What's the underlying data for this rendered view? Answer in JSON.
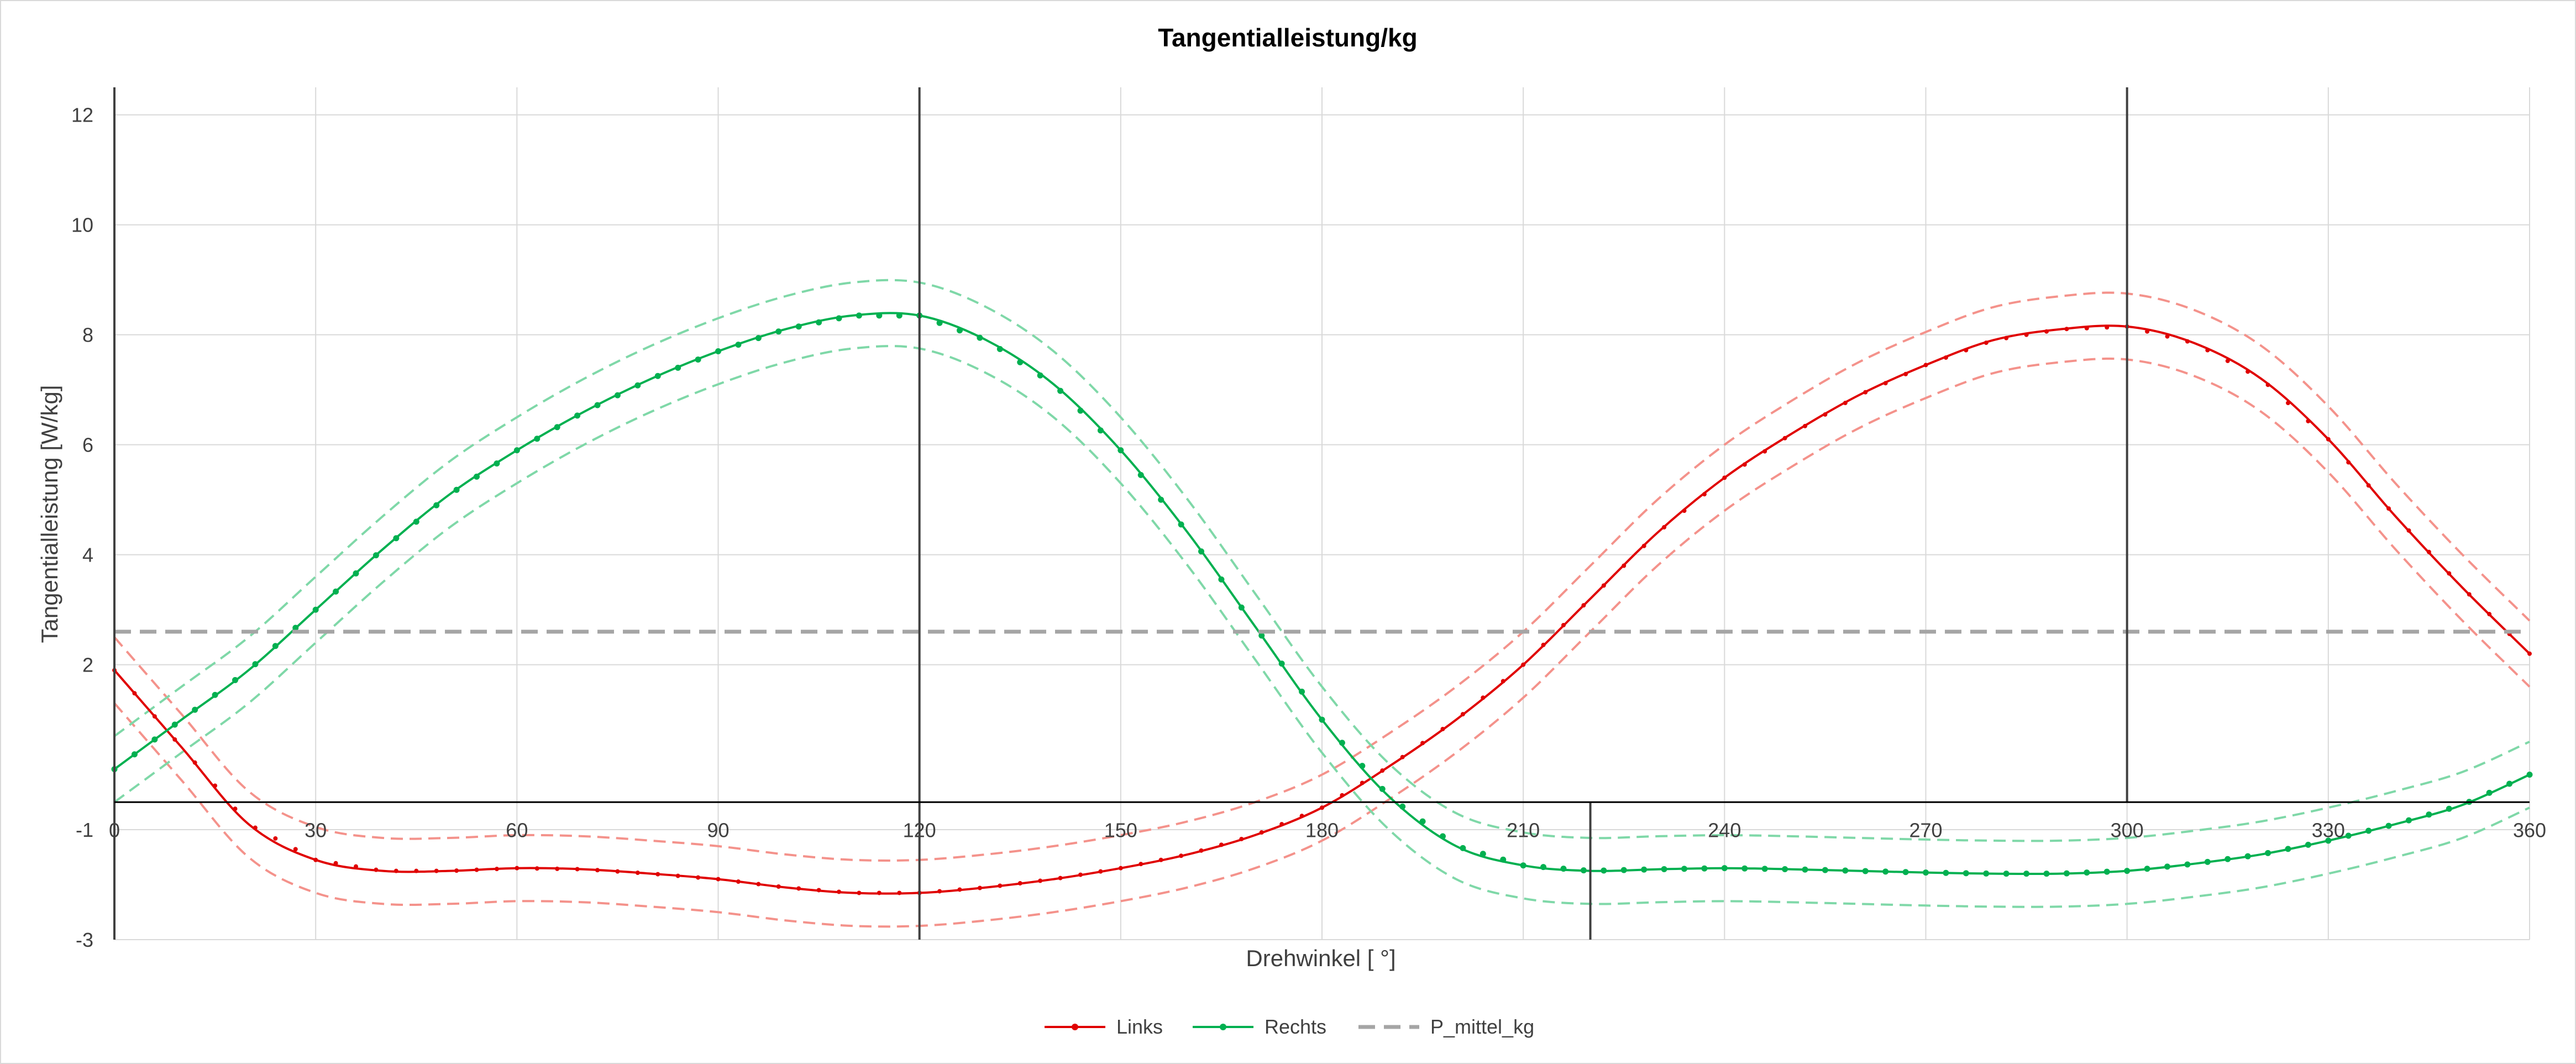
{
  "chart_data": {
    "type": "line",
    "title": "Tangentialleistung/kg",
    "xlabel": "Drehwinkel [ °]",
    "ylabel": "Tangentialleistung [W/kg]",
    "xlim": [
      0,
      360
    ],
    "ylim": [
      -3,
      12.5
    ],
    "x_ticks": [
      0,
      30,
      60,
      90,
      120,
      150,
      180,
      210,
      240,
      270,
      300,
      330,
      360
    ],
    "y_ticks": [
      -3,
      -1,
      2,
      4,
      6,
      8,
      10,
      12
    ],
    "grid": true,
    "legend_position": "bottom",
    "x_axis_crossing_y": -0.5,
    "vertical_markers": [
      {
        "x": 0,
        "y_from": -3,
        "y_to": 12.5
      },
      {
        "x": 120,
        "y_from": -3,
        "y_to": 12.5
      },
      {
        "x": 220,
        "y_from": -3,
        "y_to": -0.5
      },
      {
        "x": 300,
        "y_from": -0.5,
        "y_to": 12.5
      }
    ],
    "series": [
      {
        "name": "Links",
        "color": "#e00000",
        "band_color": "#f4928b",
        "band_width": 0.6,
        "x": [
          0,
          10,
          20,
          30,
          40,
          50,
          60,
          70,
          80,
          90,
          100,
          110,
          120,
          130,
          140,
          150,
          160,
          170,
          180,
          190,
          200,
          210,
          220,
          230,
          240,
          250,
          260,
          270,
          280,
          290,
          300,
          310,
          320,
          330,
          340,
          350,
          360
        ],
        "values": [
          1.9,
          0.5,
          -0.9,
          -1.55,
          -1.75,
          -1.75,
          -1.7,
          -1.72,
          -1.8,
          -1.9,
          -2.05,
          -2.15,
          -2.15,
          -2.05,
          -1.9,
          -1.7,
          -1.45,
          -1.1,
          -0.6,
          0.15,
          1.0,
          2.0,
          3.2,
          4.4,
          5.4,
          6.2,
          6.9,
          7.45,
          7.9,
          8.1,
          8.15,
          7.85,
          7.2,
          6.1,
          4.7,
          3.4,
          2.2
        ]
      },
      {
        "name": "Rechts",
        "color": "#00b050",
        "band_color": "#7fd8a8",
        "band_width": 0.6,
        "x": [
          0,
          10,
          20,
          30,
          40,
          50,
          60,
          70,
          80,
          90,
          100,
          110,
          120,
          130,
          140,
          150,
          160,
          170,
          180,
          190,
          200,
          210,
          220,
          230,
          240,
          250,
          260,
          270,
          280,
          290,
          300,
          310,
          320,
          330,
          340,
          350,
          360
        ],
        "values": [
          0.1,
          1.0,
          1.9,
          3.0,
          4.1,
          5.1,
          5.9,
          6.6,
          7.2,
          7.7,
          8.1,
          8.35,
          8.35,
          7.9,
          7.1,
          5.9,
          4.4,
          2.7,
          1.0,
          -0.4,
          -1.3,
          -1.65,
          -1.75,
          -1.72,
          -1.7,
          -1.72,
          -1.75,
          -1.78,
          -1.8,
          -1.8,
          -1.75,
          -1.62,
          -1.45,
          -1.2,
          -0.9,
          -0.55,
          0.0
        ]
      },
      {
        "name": "P_mittel_kg",
        "color": "#a5a5a5",
        "dashed": true,
        "x": [
          0,
          360
        ],
        "values": [
          2.6,
          2.6
        ]
      }
    ]
  }
}
